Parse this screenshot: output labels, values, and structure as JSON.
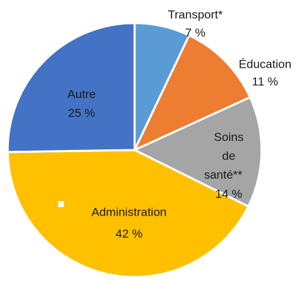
{
  "chart_data": {
    "type": "pie",
    "categories": [
      "Transport*",
      "Éducation",
      "Soins de santé**",
      "Administration",
      "Autre"
    ],
    "values": [
      7,
      11,
      14,
      42,
      25
    ],
    "value_labels": [
      "7 %",
      "11 %",
      "14 %",
      "42 %",
      "25 %"
    ],
    "colors": [
      "#5b9bd5",
      "#ed7d31",
      "#a5a5a5",
      "#ffc000",
      "#4472c4"
    ]
  }
}
